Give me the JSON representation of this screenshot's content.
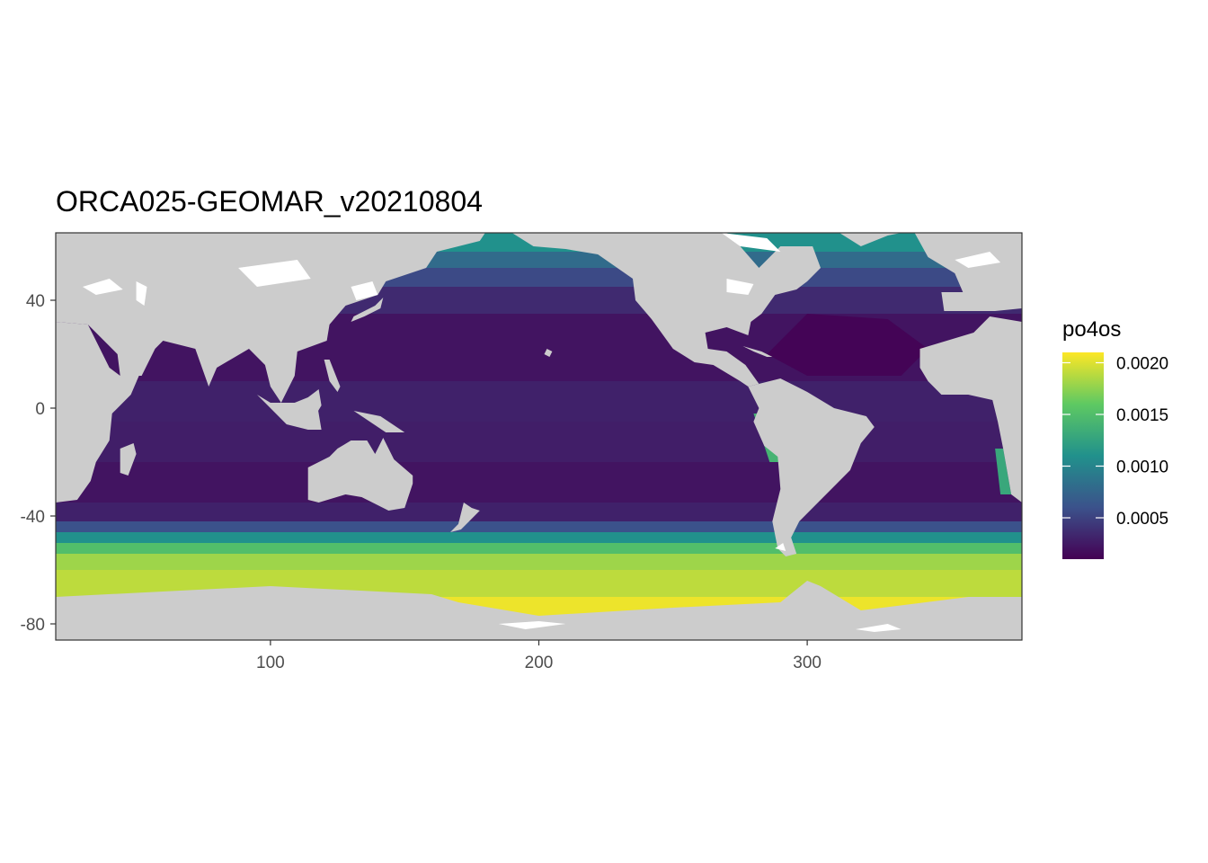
{
  "chart_data": {
    "type": "heatmap",
    "title": "ORCA025-GEOMAR_v20210804",
    "xlabel": "",
    "ylabel": "",
    "xlim": [
      20,
      380
    ],
    "ylim": [
      -86,
      65
    ],
    "x_ticks": [
      100,
      200,
      300
    ],
    "x_tick_labels": [
      "100",
      "200",
      "300"
    ],
    "y_ticks": [
      40,
      0,
      -40,
      -80
    ],
    "y_tick_labels": [
      "40",
      "0",
      "-40",
      "-80"
    ],
    "legend": {
      "title": "po4os",
      "placement": "right",
      "value_range": [
        0.0001,
        0.0021
      ],
      "ticks": [
        0.002,
        0.0015,
        0.001,
        0.0005
      ],
      "tick_labels": [
        "0.0020",
        "0.0015",
        "0.0010",
        "0.0005"
      ],
      "colormap": [
        "#440154",
        "#3b528b",
        "#21918c",
        "#5ec962",
        "#fde725"
      ]
    },
    "colors": {
      "land": "#cccccc",
      "missing": "#ffffff",
      "panel_border": "#333333"
    }
  }
}
